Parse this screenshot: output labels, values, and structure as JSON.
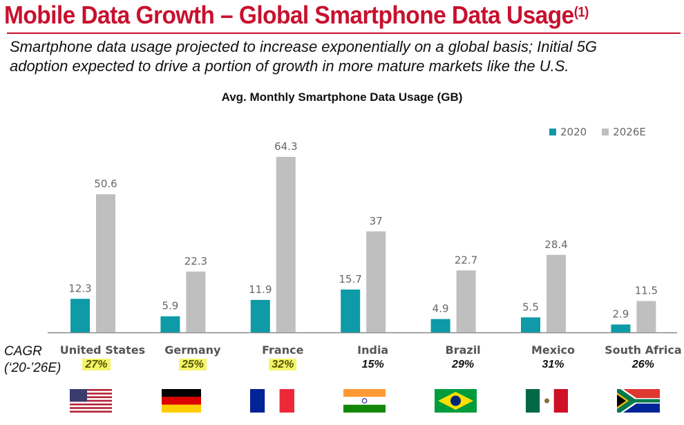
{
  "header": {
    "title": "Mobile Data Growth – Global Smartphone Data Usage",
    "title_sup": "(1)",
    "subtitle_line1": "Smartphone data usage projected to increase exponentially on a global basis; Initial 5G",
    "subtitle_line2": "adoption expected to drive a portion of growth in more mature markets like the U.S."
  },
  "colors": {
    "title": "#c8102e",
    "series_2020": "#0e9aa7",
    "series_2026": "#bfbfbf",
    "highlight": "#f4f56a"
  },
  "cagr_label_line1": "CAGR",
  "cagr_label_line2": "(‘20-’26E)",
  "chart_data": {
    "type": "bar",
    "title": "Avg. Monthly Smartphone Data Usage (GB)",
    "xlabel": "",
    "ylabel": "",
    "ylim": [
      0,
      64.3
    ],
    "grid": false,
    "legend_position": "top-right",
    "categories": [
      "United States",
      "Germany",
      "France",
      "India",
      "Brazil",
      "Mexico",
      "South Africa"
    ],
    "series": [
      {
        "name": "2020",
        "values": [
          12.3,
          5.9,
          11.9,
          15.7,
          4.9,
          5.5,
          2.9
        ],
        "labels": [
          "12.3",
          "5.9",
          "11.9",
          "15.7",
          "4.9",
          "5.5",
          "2.9"
        ]
      },
      {
        "name": "2026E",
        "values": [
          50.6,
          22.3,
          64.3,
          37,
          22.7,
          28.4,
          11.5
        ],
        "labels": [
          "50.6",
          "22.3",
          "64.3",
          "37",
          "22.7",
          "28.4",
          "11.5"
        ]
      }
    ],
    "cagr": [
      "27%",
      "25%",
      "32%",
      "15%",
      "29%",
      "31%",
      "26%"
    ],
    "cagr_highlighted": [
      true,
      true,
      true,
      false,
      false,
      false,
      false
    ],
    "flags": [
      "us-flag",
      "germany-flag",
      "france-flag",
      "india-flag",
      "brazil-flag",
      "mexico-flag",
      "south-africa-flag"
    ]
  }
}
